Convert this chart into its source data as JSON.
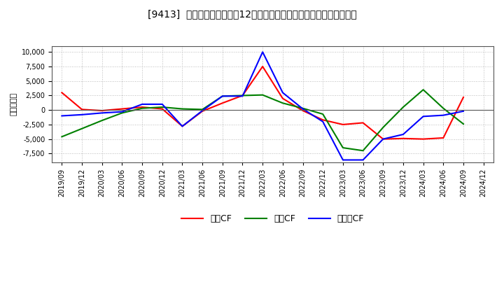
{
  "title": "[9413]  キャッシュフローの12か月移動合計の対前年同期増減額の推移",
  "ylabel": "（百万円）",
  "background_color": "#ffffff",
  "plot_bg_color": "#ffffff",
  "grid_color": "#aaaaaa",
  "ylim": [
    -9000,
    11000
  ],
  "yticks": [
    -7500,
    -5000,
    -2500,
    0,
    2500,
    5000,
    7500,
    10000
  ],
  "x_labels": [
    "2019/09",
    "2019/12",
    "2020/03",
    "2020/06",
    "2020/09",
    "2020/12",
    "2021/03",
    "2021/06",
    "2021/09",
    "2021/12",
    "2022/03",
    "2022/06",
    "2022/09",
    "2022/12",
    "2023/03",
    "2023/06",
    "2023/09",
    "2023/12",
    "2024/03",
    "2024/06",
    "2024/09",
    "2024/12"
  ],
  "series": {
    "営業CF": {
      "color": "#ff0000",
      "data": [
        3000,
        100,
        -100,
        200,
        500,
        200,
        -2800,
        -200,
        1200,
        2500,
        7500,
        2000,
        -100,
        -1700,
        -2500,
        -2200,
        -5000,
        -4900,
        -5000,
        -4800,
        2200,
        null
      ]
    },
    "投資CF": {
      "color": "#008000",
      "data": [
        -4600,
        -3200,
        -1800,
        -500,
        300,
        500,
        200,
        100,
        2400,
        2500,
        2600,
        1200,
        300,
        -700,
        -6500,
        -7000,
        -3000,
        500,
        3500,
        300,
        -2400,
        null
      ]
    },
    "フリーCF": {
      "color": "#0000ff",
      "data": [
        -1000,
        -800,
        -500,
        -300,
        1000,
        1000,
        -2800,
        -100,
        2400,
        2400,
        10000,
        3000,
        200,
        -2000,
        -8600,
        -8600,
        -5000,
        -4200,
        -1100,
        -900,
        -200,
        null
      ]
    }
  }
}
